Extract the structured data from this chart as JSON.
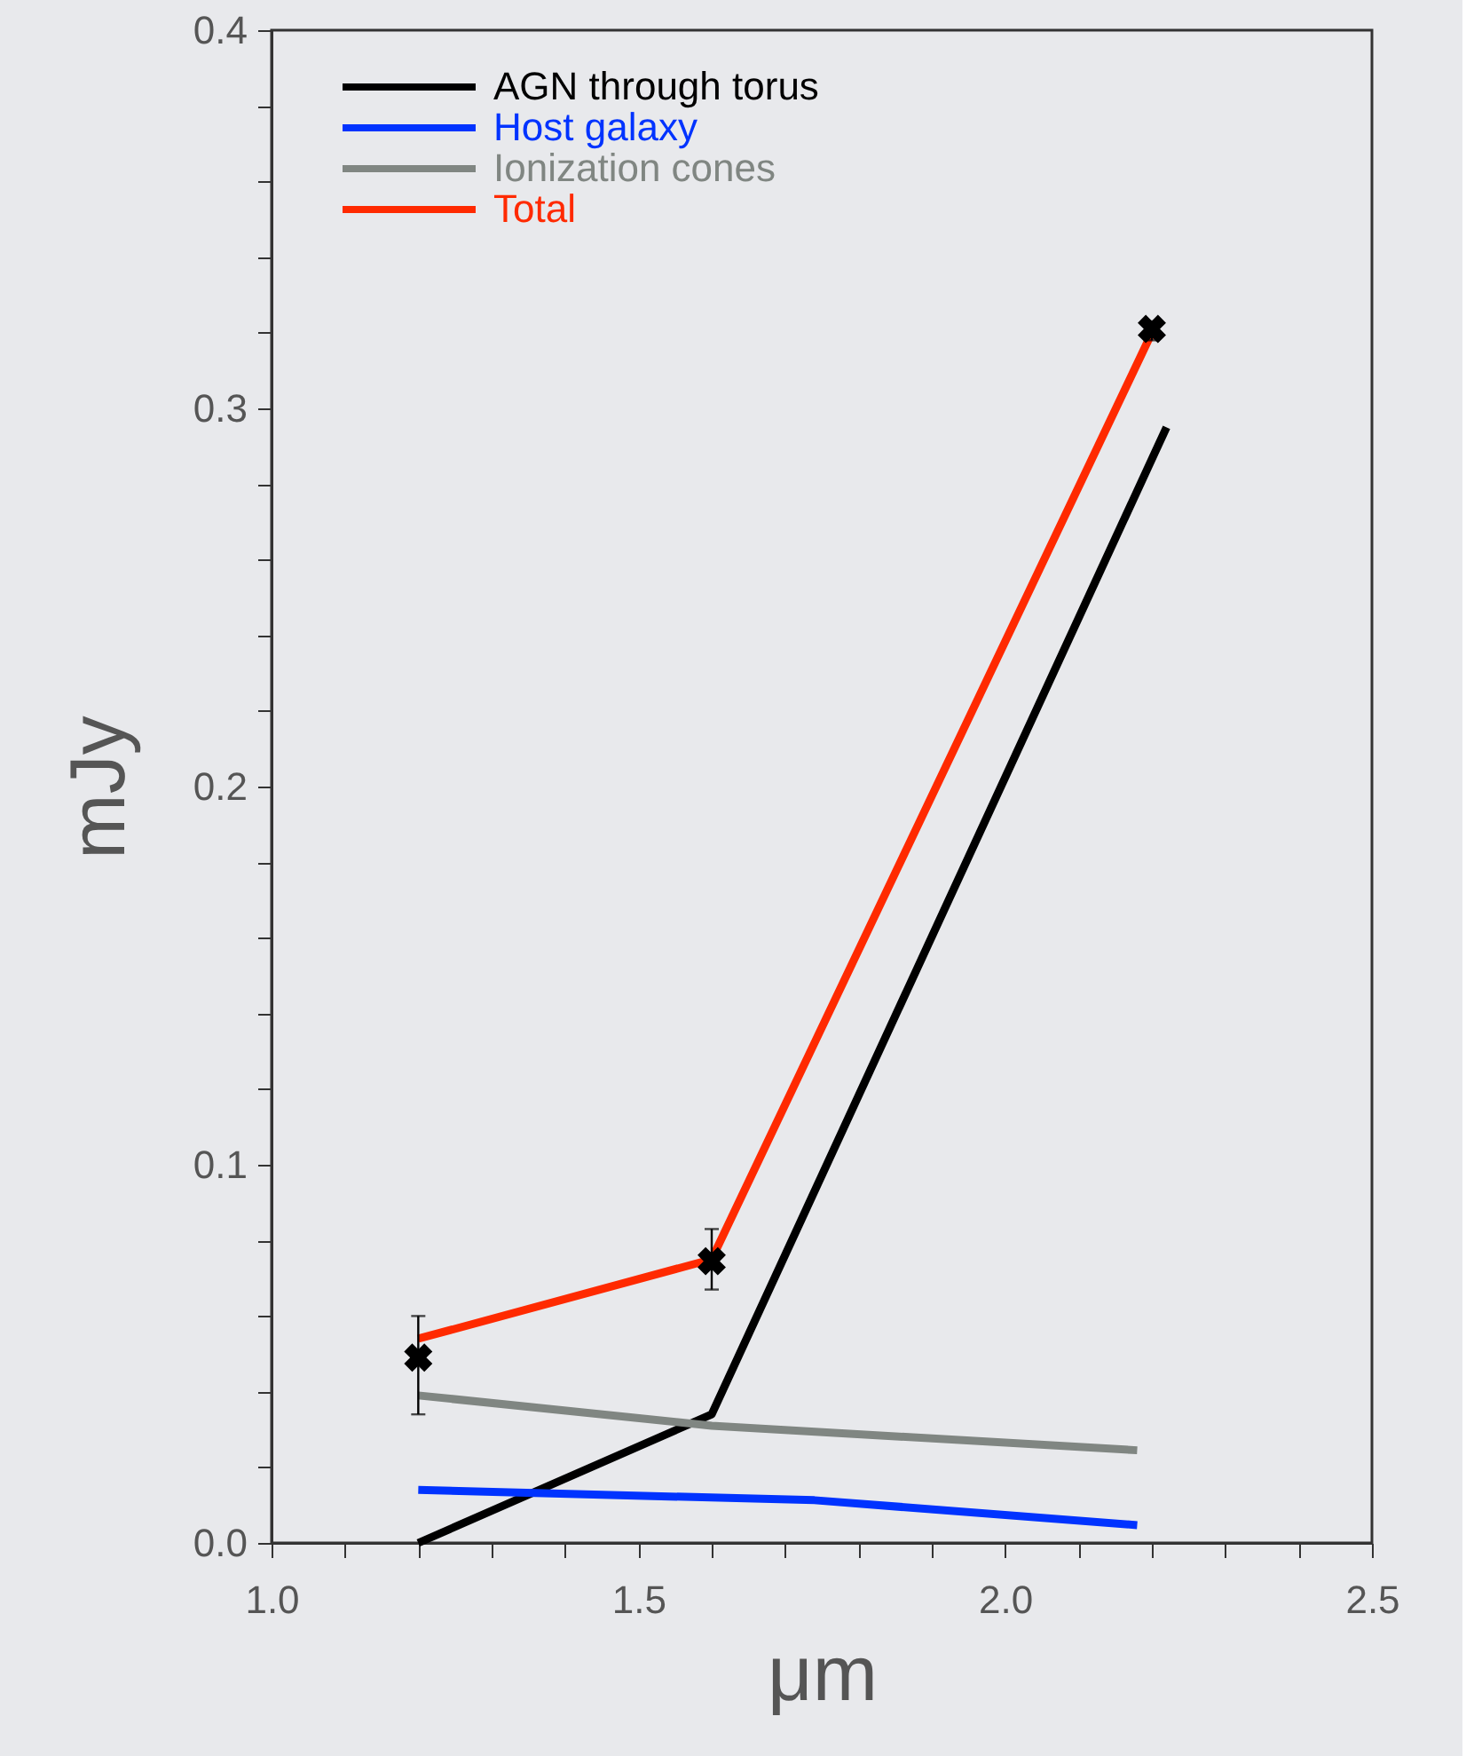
{
  "chart_data": {
    "type": "line",
    "xlabel": "μm",
    "ylabel": "mJy",
    "xlim": [
      1.0,
      2.5
    ],
    "ylim": [
      0.0,
      0.4
    ],
    "xticks": [
      {
        "value": 1.0,
        "label": "1.0"
      },
      {
        "value": 1.1,
        "label": null
      },
      {
        "value": 1.2,
        "label": null
      },
      {
        "value": 1.3,
        "label": null
      },
      {
        "value": 1.4,
        "label": null
      },
      {
        "value": 1.5,
        "label": "1.5"
      },
      {
        "value": 1.6,
        "label": null
      },
      {
        "value": 1.7,
        "label": null
      },
      {
        "value": 1.8,
        "label": null
      },
      {
        "value": 1.9,
        "label": null
      },
      {
        "value": 2.0,
        "label": "2.0"
      },
      {
        "value": 2.1,
        "label": null
      },
      {
        "value": 2.2,
        "label": null
      },
      {
        "value": 2.3,
        "label": null
      },
      {
        "value": 2.4,
        "label": null
      },
      {
        "value": 2.5,
        "label": "2.5"
      }
    ],
    "yticks": [
      {
        "value": 0.0,
        "label": "0.0"
      },
      {
        "value": 0.02,
        "label": null
      },
      {
        "value": 0.04,
        "label": null
      },
      {
        "value": 0.06,
        "label": null
      },
      {
        "value": 0.08,
        "label": null
      },
      {
        "value": 0.1,
        "label": "0.1"
      },
      {
        "value": 0.12,
        "label": null
      },
      {
        "value": 0.14,
        "label": null
      },
      {
        "value": 0.16,
        "label": null
      },
      {
        "value": 0.18,
        "label": null
      },
      {
        "value": 0.2,
        "label": "0.2"
      },
      {
        "value": 0.22,
        "label": null
      },
      {
        "value": 0.24,
        "label": null
      },
      {
        "value": 0.26,
        "label": null
      },
      {
        "value": 0.28,
        "label": null
      },
      {
        "value": 0.3,
        "label": "0.3"
      },
      {
        "value": 0.32,
        "label": null
      },
      {
        "value": 0.34,
        "label": null
      },
      {
        "value": 0.36,
        "label": null
      },
      {
        "value": 0.38,
        "label": null
      },
      {
        "value": 0.4,
        "label": "0.4"
      }
    ],
    "grid": false,
    "legend": "top left",
    "series": [
      {
        "name": "AGN through torus",
        "color": "#000000",
        "x": [
          1.2,
          1.6,
          2.22
        ],
        "values": [
          0.0,
          0.034,
          0.295
        ]
      },
      {
        "name": "Host galaxy",
        "color": "#0033ff",
        "x": [
          1.2,
          1.74,
          2.18
        ],
        "values": [
          0.014,
          0.0113,
          0.0047
        ]
      },
      {
        "name": "Ionization cones",
        "color": "#808682",
        "x": [
          1.2,
          1.6,
          2.18
        ],
        "values": [
          0.039,
          0.031,
          0.0245
        ]
      },
      {
        "name": "Total",
        "color": "#ff2a00",
        "x": [
          1.2,
          1.6,
          2.2
        ],
        "values": [
          0.054,
          0.075,
          0.32
        ]
      },
      {
        "type": "scatter",
        "marker": "cross",
        "color": "#000000",
        "x": [
          1.2,
          1.6,
          2.2
        ],
        "values": [
          0.049,
          0.0745,
          0.321
        ],
        "errors": [
          [
            0.034,
            0.06
          ],
          [
            0.067,
            0.083
          ],
          [
            0.318,
            0.323
          ]
        ]
      }
    ]
  }
}
